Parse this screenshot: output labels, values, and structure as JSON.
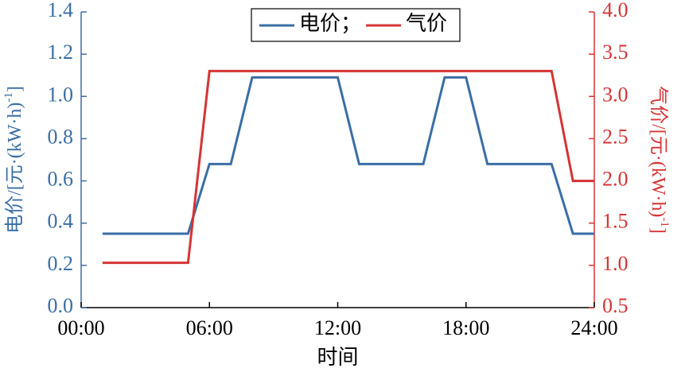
{
  "chart_data": {
    "type": "line",
    "x": [
      1,
      5,
      6,
      7,
      8,
      12,
      13,
      16,
      17,
      18,
      19,
      22,
      23,
      24
    ],
    "series": [
      {
        "name": "电价；",
        "color": "#3a6ea5",
        "axis": "y",
        "x": [
          1,
          5,
          6,
          7,
          8,
          12,
          13,
          16,
          17,
          18,
          19,
          22,
          23,
          24
        ],
        "values": [
          0.35,
          0.35,
          0.68,
          0.68,
          1.09,
          1.09,
          0.68,
          0.68,
          1.09,
          1.09,
          0.68,
          0.68,
          0.35,
          0.35
        ]
      },
      {
        "name": "气价",
        "color": "#d63434",
        "axis": "y2",
        "x": [
          1,
          5,
          6,
          22,
          23,
          24
        ],
        "values": [
          1.03,
          1.03,
          3.3,
          3.3,
          2.0,
          2.0
        ]
      }
    ],
    "xlabel": "时间",
    "ylabel": [
      "电价/[元·(kW·h)",
      "-1",
      "]"
    ],
    "y2label": [
      "气价/[元·(kW·h)",
      "-1",
      "]"
    ],
    "xlim": [
      0,
      24
    ],
    "xticks": [
      {
        "value": 0,
        "label": "00:00"
      },
      {
        "value": 6,
        "label": "06:00"
      },
      {
        "value": 12,
        "label": "12:00"
      },
      {
        "value": 18,
        "label": "18:00"
      },
      {
        "value": 24,
        "label": "24:00"
      }
    ],
    "ylim": [
      0,
      1.4
    ],
    "yticks": [
      {
        "value": 0,
        "label": "0.0"
      },
      0.2,
      0.4,
      0.6,
      0.8,
      {
        "value": 1,
        "label": "1.0"
      },
      1.2,
      1.4
    ],
    "y2lim": [
      0.5,
      4.0
    ],
    "y2ticks": [
      0.5,
      {
        "value": 1,
        "label": "1.0"
      },
      1.5,
      {
        "value": 2,
        "label": "2.0"
      },
      2.5,
      {
        "value": 3,
        "label": "3.0"
      },
      3.5,
      {
        "value": 4,
        "label": "4.0"
      }
    ],
    "legend": "top"
  }
}
